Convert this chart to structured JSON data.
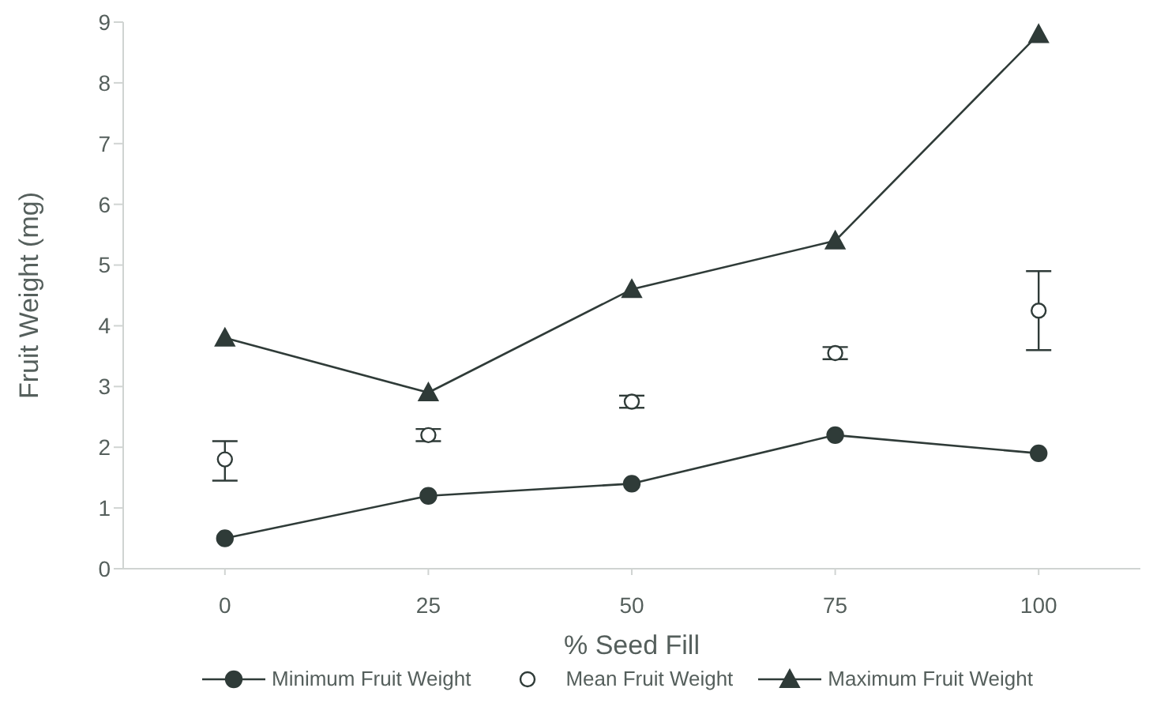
{
  "chart_data": {
    "type": "line",
    "xlabel": "% Seed Fill",
    "ylabel": "Fruit Weight (mg)",
    "x": [
      0,
      25,
      50,
      75,
      100
    ],
    "xlim": [
      -12.5,
      112.5
    ],
    "xticks": [
      0,
      25,
      50,
      75,
      100
    ],
    "ylim": [
      0,
      9
    ],
    "yticks": [
      0,
      1,
      2,
      3,
      4,
      5,
      6,
      7,
      8,
      9
    ],
    "grid": false,
    "legend": "bottom",
    "series": [
      {
        "name": "Minimum Fruit Weight",
        "marker": "circle",
        "color": "#2f3b38",
        "values": [
          0.5,
          1.2,
          1.4,
          2.2,
          1.9
        ]
      },
      {
        "name": "Mean Fruit Weight",
        "type": "scatter",
        "marker": "circle",
        "color": "#2f3b38",
        "values": [
          1.8,
          2.2,
          2.75,
          3.55,
          4.25
        ],
        "errors": [
          [
            1.45,
            2.1
          ],
          [
            2.1,
            2.3
          ],
          [
            2.65,
            2.85
          ],
          [
            3.45,
            3.65
          ],
          [
            3.6,
            4.9
          ]
        ]
      },
      {
        "name": "Maximum Fruit Weight",
        "marker": "triangle",
        "color": "#2f3b38",
        "values": [
          3.8,
          2.9,
          4.6,
          5.4,
          8.8
        ]
      }
    ]
  }
}
